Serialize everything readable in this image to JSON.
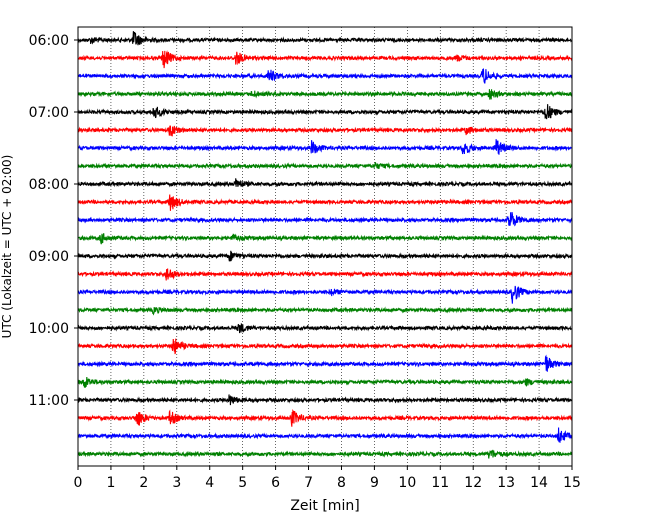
{
  "chart_data": {
    "type": "line",
    "title": "",
    "xlabel": "Zeit  [min]",
    "ylabel": "UTC (Lokalzeit = UTC + 02:00)",
    "xlim": [
      0,
      15
    ],
    "x_ticks": [
      0,
      1,
      2,
      3,
      4,
      5,
      6,
      7,
      8,
      9,
      10,
      11,
      12,
      13,
      14,
      15
    ],
    "x_tick_labels": [
      "0",
      "1",
      "2",
      "3",
      "4",
      "5",
      "6",
      "7",
      "8",
      "9",
      "10",
      "11",
      "12",
      "13",
      "14",
      "15"
    ],
    "vertical_grid": true,
    "grid_style": "dotted",
    "y_tick_labels": [
      "06:00",
      "07:00",
      "08:00",
      "09:00",
      "10:00",
      "11:00"
    ],
    "y_tick_trace_index": [
      0,
      4,
      8,
      12,
      16,
      20
    ],
    "trace_minutes": 15,
    "color_cycle": [
      "#000000",
      "#ff0000",
      "#0000ff",
      "#008000"
    ],
    "series": [
      {
        "start": "06:00",
        "events": [
          [
            1.7,
            9
          ],
          [
            0.4,
            3
          ]
        ]
      },
      {
        "start": "06:15",
        "events": [
          [
            2.6,
            10
          ],
          [
            4.8,
            7
          ],
          [
            11.5,
            3
          ]
        ]
      },
      {
        "start": "06:30",
        "events": [
          [
            5.8,
            7
          ],
          [
            12.3,
            9
          ]
        ]
      },
      {
        "start": "06:45",
        "events": [
          [
            5.3,
            3
          ],
          [
            12.5,
            5
          ]
        ]
      },
      {
        "start": "07:00",
        "events": [
          [
            2.3,
            7
          ],
          [
            14.2,
            10
          ]
        ]
      },
      {
        "start": "07:15",
        "events": [
          [
            2.8,
            7
          ],
          [
            11.8,
            4
          ]
        ]
      },
      {
        "start": "07:30",
        "events": [
          [
            7.1,
            7
          ],
          [
            11.7,
            7
          ],
          [
            12.7,
            9
          ]
        ]
      },
      {
        "start": "07:45",
        "events": [
          [
            9.0,
            3
          ]
        ]
      },
      {
        "start": "08:00",
        "events": [
          [
            4.8,
            5
          ]
        ]
      },
      {
        "start": "08:15",
        "events": [
          [
            2.8,
            9
          ]
        ]
      },
      {
        "start": "08:30",
        "events": [
          [
            13.1,
            11
          ]
        ]
      },
      {
        "start": "08:45",
        "events": [
          [
            0.7,
            5
          ],
          [
            4.7,
            3
          ]
        ]
      },
      {
        "start": "09:00",
        "events": [
          [
            4.6,
            5
          ]
        ]
      },
      {
        "start": "09:15",
        "events": [
          [
            2.7,
            7
          ]
        ]
      },
      {
        "start": "09:30",
        "events": [
          [
            13.2,
            11
          ],
          [
            7.7,
            3
          ]
        ]
      },
      {
        "start": "09:45",
        "events": [
          [
            2.3,
            3
          ]
        ]
      },
      {
        "start": "10:00",
        "events": [
          [
            4.9,
            5
          ]
        ]
      },
      {
        "start": "10:15",
        "events": [
          [
            2.9,
            9
          ]
        ]
      },
      {
        "start": "10:30",
        "events": [
          [
            14.2,
            9
          ]
        ]
      },
      {
        "start": "10:45",
        "events": [
          [
            0.2,
            6
          ],
          [
            13.6,
            3
          ]
        ]
      },
      {
        "start": "11:00",
        "events": [
          [
            4.6,
            5
          ]
        ]
      },
      {
        "start": "11:15",
        "events": [
          [
            1.8,
            9
          ],
          [
            2.8,
            7
          ],
          [
            6.5,
            8
          ]
        ]
      },
      {
        "start": "11:30",
        "events": [
          [
            14.6,
            8
          ]
        ]
      },
      {
        "start": "11:45",
        "events": [
          [
            12.5,
            5
          ]
        ]
      }
    ]
  }
}
